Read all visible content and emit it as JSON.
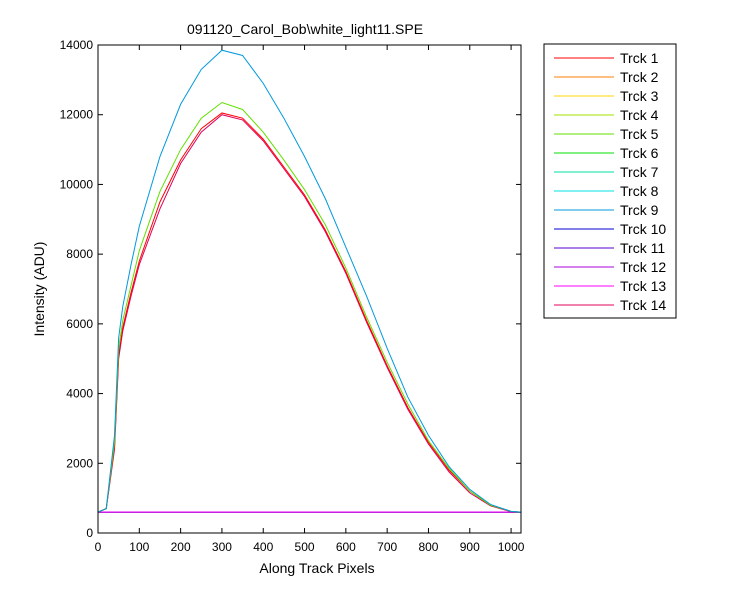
{
  "chart_data": {
    "type": "line",
    "title": "091120_Carol_Bob\\white_light11.SPE",
    "xlabel": "Along Track Pixels",
    "ylabel": "Intensity (ADU)",
    "xlim": [
      0,
      1024
    ],
    "ylim": [
      0,
      14000
    ],
    "xticks": [
      0,
      100,
      200,
      300,
      400,
      500,
      600,
      700,
      800,
      900,
      1000
    ],
    "yticks": [
      0,
      2000,
      4000,
      6000,
      8000,
      10000,
      12000,
      14000
    ],
    "grid": false,
    "legend_position": "outside-right",
    "series": [
      {
        "name": "Trck 1",
        "color": "#ff0000",
        "x": [
          0,
          20,
          40,
          50,
          60,
          80,
          100,
          150,
          200,
          250,
          300,
          350,
          400,
          450,
          500,
          550,
          600,
          650,
          700,
          750,
          800,
          850,
          900,
          950,
          1000,
          1024
        ],
        "y": [
          600,
          700,
          2500,
          5100,
          5900,
          6900,
          7800,
          9500,
          10700,
          11600,
          12050,
          11900,
          11300,
          10500,
          9700,
          8700,
          7500,
          6100,
          4800,
          3600,
          2600,
          1800,
          1200,
          800,
          620,
          600
        ]
      },
      {
        "name": "Trck 2",
        "color": "#ff7f00",
        "x": [
          0,
          1024
        ],
        "y": [
          600,
          600
        ]
      },
      {
        "name": "Trck 3",
        "color": "#ffd700",
        "x": [
          0,
          1024
        ],
        "y": [
          600,
          600
        ]
      },
      {
        "name": "Trck 4",
        "color": "#a0e000",
        "x": [
          0,
          1024
        ],
        "y": [
          600,
          600
        ]
      },
      {
        "name": "Trck 5",
        "color": "#60e000",
        "x": [
          0,
          20,
          40,
          50,
          60,
          80,
          100,
          150,
          200,
          250,
          300,
          350,
          400,
          450,
          500,
          550,
          600,
          650,
          700,
          750,
          800,
          850,
          900,
          950,
          1000,
          1024
        ],
        "y": [
          600,
          700,
          2600,
          5300,
          6100,
          7100,
          8100,
          9800,
          11000,
          11900,
          12350,
          12150,
          11500,
          10700,
          9850,
          8850,
          7600,
          6200,
          4900,
          3700,
          2650,
          1850,
          1200,
          800,
          620,
          600
        ]
      },
      {
        "name": "Trck 6",
        "color": "#00e000",
        "x": [
          0,
          1024
        ],
        "y": [
          600,
          600
        ]
      },
      {
        "name": "Trck 7",
        "color": "#00e0a0",
        "x": [
          0,
          1024
        ],
        "y": [
          600,
          600
        ]
      },
      {
        "name": "Trck 8",
        "color": "#00e0e0",
        "x": [
          0,
          1024
        ],
        "y": [
          600,
          600
        ]
      },
      {
        "name": "Trck 9",
        "color": "#0099dd",
        "x": [
          0,
          20,
          40,
          50,
          60,
          80,
          100,
          150,
          200,
          250,
          300,
          350,
          400,
          450,
          500,
          550,
          600,
          650,
          700,
          750,
          800,
          850,
          900,
          950,
          1000,
          1024
        ],
        "y": [
          600,
          700,
          2800,
          5600,
          6500,
          7700,
          8800,
          10800,
          12300,
          13300,
          13850,
          13700,
          12900,
          11900,
          10800,
          9600,
          8200,
          6800,
          5300,
          3900,
          2800,
          1900,
          1250,
          820,
          620,
          600
        ]
      },
      {
        "name": "Trck 10",
        "color": "#0000cc",
        "x": [
          0,
          1024
        ],
        "y": [
          600,
          600
        ]
      },
      {
        "name": "Trck 11",
        "color": "#5500cc",
        "x": [
          0,
          1024
        ],
        "y": [
          600,
          600
        ]
      },
      {
        "name": "Trck 12",
        "color": "#aa00dd",
        "x": [
          0,
          1024
        ],
        "y": [
          600,
          600
        ]
      },
      {
        "name": "Trck 13",
        "color": "#ff00ff",
        "x": [
          0,
          1024
        ],
        "y": [
          600,
          600
        ]
      },
      {
        "name": "Trck 14",
        "color": "#e0005a",
        "x": [
          0,
          20,
          40,
          50,
          60,
          80,
          100,
          150,
          200,
          250,
          300,
          350,
          400,
          450,
          500,
          550,
          600,
          650,
          700,
          750,
          800,
          850,
          900,
          950,
          1000,
          1024
        ],
        "y": [
          600,
          700,
          2400,
          5000,
          5800,
          6800,
          7700,
          9300,
          10600,
          11500,
          12000,
          11850,
          11250,
          10450,
          9650,
          8650,
          7450,
          6050,
          4750,
          3550,
          2550,
          1750,
          1150,
          780,
          610,
          600
        ]
      }
    ]
  }
}
